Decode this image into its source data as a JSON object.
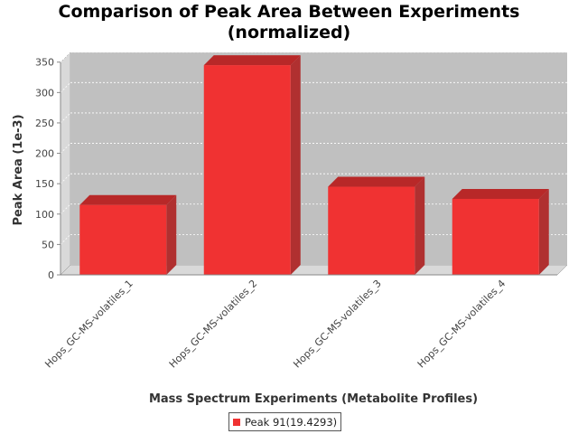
{
  "chart_data": {
    "type": "bar",
    "title_line1": "Comparison of Peak Area Between Experiments",
    "title_line2": "(normalized)",
    "xlabel": "Mass Spectrum Experiments (Metabolite Profiles)",
    "ylabel": "Peak Area (1e-3)",
    "categories": [
      "Hops_GC-MS-volatiles_1",
      "Hops_GC-MS-volatiles_2",
      "Hops_GC-MS-volatiles_3",
      "Hops_GC-MS-volatiles_4"
    ],
    "series": [
      {
        "name": "Peak 91(19.4293)",
        "values": [
          115,
          345,
          145,
          125
        ]
      }
    ],
    "ylim": [
      0,
      360
    ],
    "yticks": [
      0,
      50,
      100,
      150,
      200,
      250,
      300,
      350
    ],
    "grid": true,
    "legend_position": "bottom",
    "colors": {
      "bar": "#f03232",
      "bar_top": "#b82828",
      "bar_side": "#b03030",
      "plot_bg": "#c0c0c0",
      "wall": "#d9d9d9"
    }
  }
}
